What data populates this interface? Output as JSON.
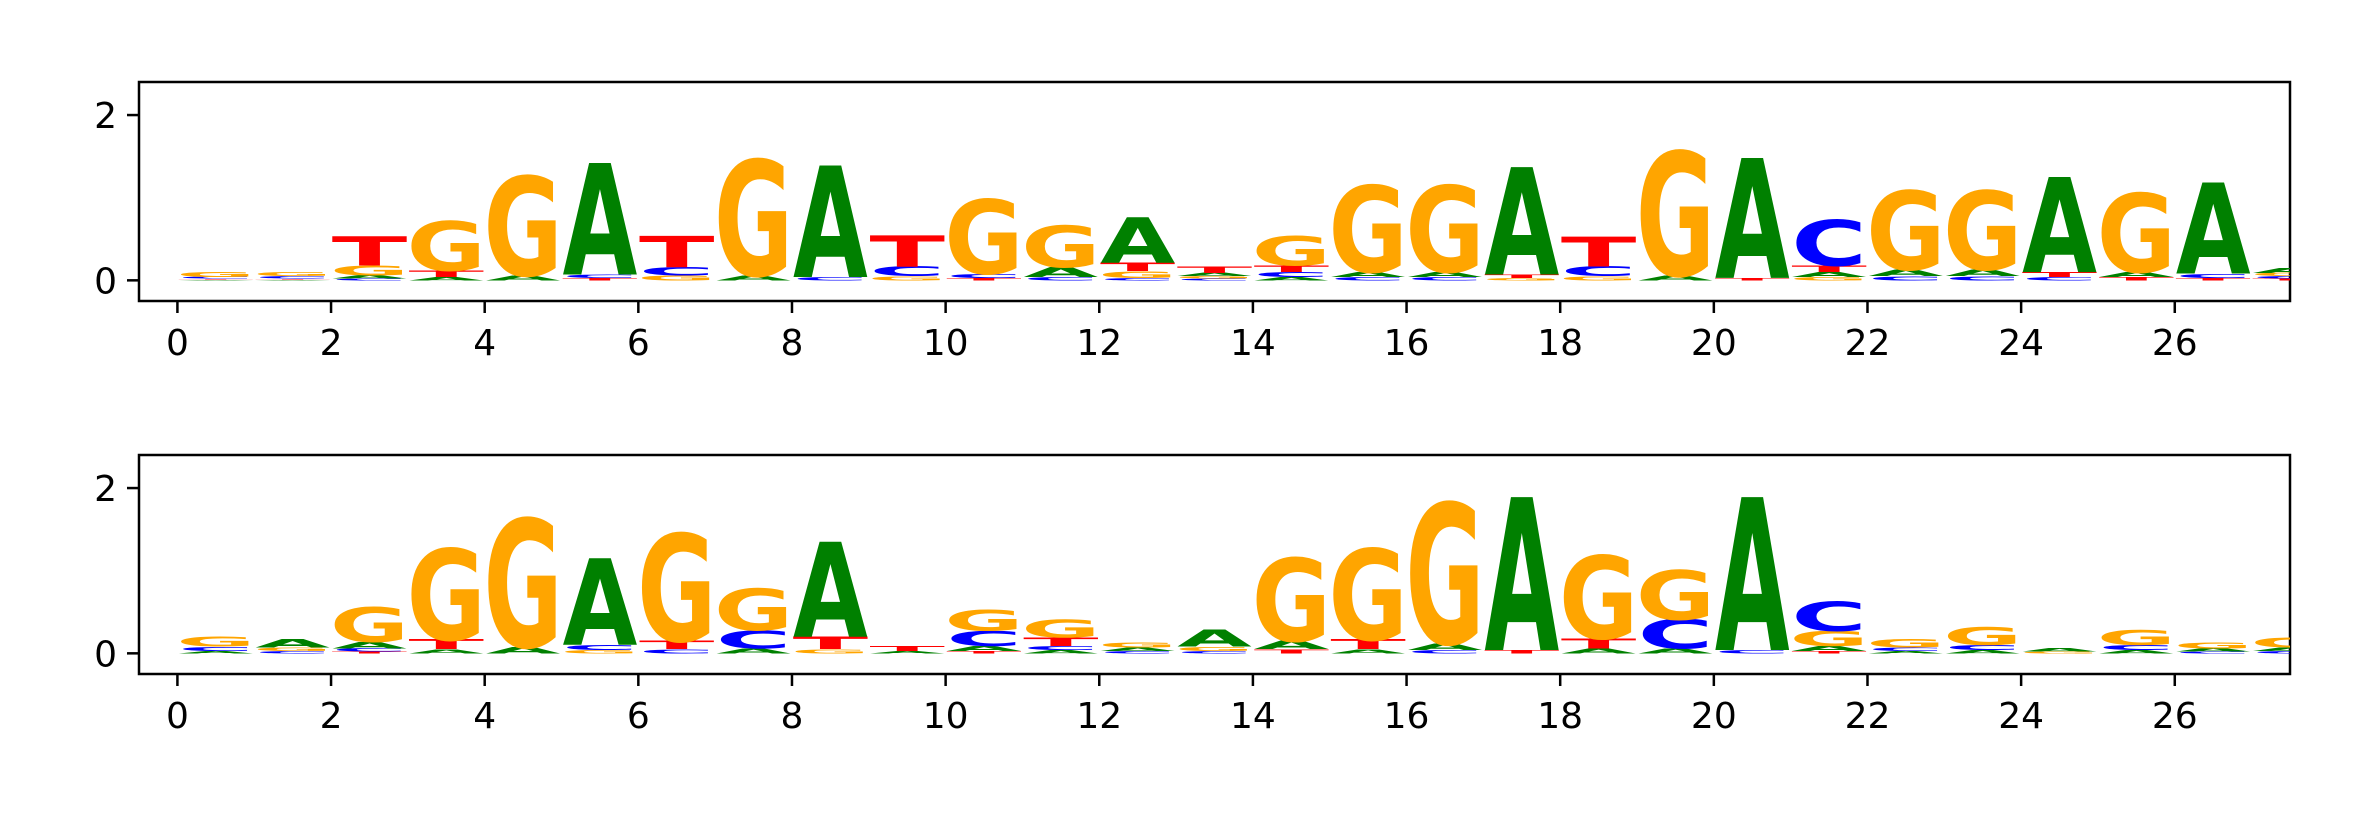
{
  "chart_data": [
    {
      "type": "sequence-logo",
      "title": "",
      "xlabel": "",
      "ylabel": "",
      "xlim": [
        -0.5,
        27.5
      ],
      "ylim": [
        -0.25,
        2.4
      ],
      "xticks": [
        "0",
        "2",
        "4",
        "6",
        "8",
        "10",
        "12",
        "14",
        "16",
        "18",
        "20",
        "22",
        "24",
        "26"
      ],
      "yticks": [
        "0",
        "2"
      ],
      "positions": [
        [
          {
            "letter": "G",
            "h": 0.06
          },
          {
            "letter": "C",
            "h": 0.02
          },
          {
            "letter": "A",
            "h": 0.01
          },
          {
            "letter": "T",
            "h": 0.01
          }
        ],
        [
          {
            "letter": "G",
            "h": 0.05
          },
          {
            "letter": "C",
            "h": 0.03
          },
          {
            "letter": "A",
            "h": 0.01
          },
          {
            "letter": "T",
            "h": 0.01
          }
        ],
        [
          {
            "letter": "T",
            "h": 0.35
          },
          {
            "letter": "G",
            "h": 0.12
          },
          {
            "letter": "A",
            "h": 0.04
          },
          {
            "letter": "C",
            "h": 0.02
          }
        ],
        [
          {
            "letter": "G",
            "h": 0.6
          },
          {
            "letter": "T",
            "h": 0.08
          },
          {
            "letter": "A",
            "h": 0.04
          }
        ],
        [
          {
            "letter": "G",
            "h": 1.2
          },
          {
            "letter": "A",
            "h": 0.06
          }
        ],
        [
          {
            "letter": "A",
            "h": 1.35
          },
          {
            "letter": "C",
            "h": 0.04
          },
          {
            "letter": "T",
            "h": 0.03
          }
        ],
        [
          {
            "letter": "T",
            "h": 0.38
          },
          {
            "letter": "C",
            "h": 0.1
          },
          {
            "letter": "G",
            "h": 0.06
          }
        ],
        [
          {
            "letter": "G",
            "h": 1.4
          },
          {
            "letter": "A",
            "h": 0.06
          }
        ],
        [
          {
            "letter": "A",
            "h": 1.35
          },
          {
            "letter": "C",
            "h": 0.04
          }
        ],
        [
          {
            "letter": "T",
            "h": 0.38
          },
          {
            "letter": "C",
            "h": 0.12
          },
          {
            "letter": "G",
            "h": 0.05
          }
        ],
        [
          {
            "letter": "G",
            "h": 0.9
          },
          {
            "letter": "C",
            "h": 0.05
          },
          {
            "letter": "T",
            "h": 0.03
          }
        ],
        [
          {
            "letter": "G",
            "h": 0.5
          },
          {
            "letter": "A",
            "h": 0.12
          },
          {
            "letter": "C",
            "h": 0.04
          }
        ],
        [
          {
            "letter": "A",
            "h": 0.55
          },
          {
            "letter": "T",
            "h": 0.1
          },
          {
            "letter": "G",
            "h": 0.08
          },
          {
            "letter": "C",
            "h": 0.03
          }
        ],
        [
          {
            "letter": "T",
            "h": 0.08
          },
          {
            "letter": "A",
            "h": 0.04
          },
          {
            "letter": "G",
            "h": 0.03
          },
          {
            "letter": "C",
            "h": 0.02
          }
        ],
        [
          {
            "letter": "G",
            "h": 0.35
          },
          {
            "letter": "T",
            "h": 0.08
          },
          {
            "letter": "C",
            "h": 0.06
          },
          {
            "letter": "A",
            "h": 0.04
          }
        ],
        [
          {
            "letter": "G",
            "h": 1.05
          },
          {
            "letter": "A",
            "h": 0.06
          },
          {
            "letter": "C",
            "h": 0.04
          }
        ],
        [
          {
            "letter": "G",
            "h": 1.05
          },
          {
            "letter": "A",
            "h": 0.06
          },
          {
            "letter": "C",
            "h": 0.04
          }
        ],
        [
          {
            "letter": "A",
            "h": 1.3
          },
          {
            "letter": "T",
            "h": 0.04
          },
          {
            "letter": "G",
            "h": 0.03
          }
        ],
        [
          {
            "letter": "T",
            "h": 0.36
          },
          {
            "letter": "C",
            "h": 0.12
          },
          {
            "letter": "G",
            "h": 0.05
          }
        ],
        [
          {
            "letter": "G",
            "h": 1.5
          },
          {
            "letter": "A",
            "h": 0.06
          }
        ],
        [
          {
            "letter": "A",
            "h": 1.45
          },
          {
            "letter": "T",
            "h": 0.03
          }
        ],
        [
          {
            "letter": "C",
            "h": 0.55
          },
          {
            "letter": "T",
            "h": 0.08
          },
          {
            "letter": "A",
            "h": 0.06
          },
          {
            "letter": "G",
            "h": 0.04
          }
        ],
        [
          {
            "letter": "G",
            "h": 0.95
          },
          {
            "letter": "A",
            "h": 0.08
          },
          {
            "letter": "C",
            "h": 0.05
          }
        ],
        [
          {
            "letter": "G",
            "h": 0.95
          },
          {
            "letter": "A",
            "h": 0.08
          },
          {
            "letter": "C",
            "h": 0.05
          }
        ],
        [
          {
            "letter": "A",
            "h": 1.15
          },
          {
            "letter": "T",
            "h": 0.06
          },
          {
            "letter": "C",
            "h": 0.04
          }
        ],
        [
          {
            "letter": "G",
            "h": 0.95
          },
          {
            "letter": "A",
            "h": 0.06
          },
          {
            "letter": "T",
            "h": 0.04
          }
        ],
        [
          {
            "letter": "A",
            "h": 1.1
          },
          {
            "letter": "C",
            "h": 0.05
          },
          {
            "letter": "T",
            "h": 0.03
          }
        ],
        [
          {
            "letter": "A",
            "h": 0.06
          },
          {
            "letter": "G",
            "h": 0.04
          },
          {
            "letter": "C",
            "h": 0.03
          },
          {
            "letter": "T",
            "h": 0.02
          }
        ]
      ]
    },
    {
      "type": "sequence-logo",
      "title": "",
      "xlabel": "",
      "ylabel": "",
      "xlim": [
        -0.5,
        27.5
      ],
      "ylim": [
        -0.25,
        2.4
      ],
      "xticks": [
        "0",
        "2",
        "4",
        "6",
        "8",
        "10",
        "12",
        "14",
        "16",
        "18",
        "20",
        "22",
        "24",
        "26"
      ],
      "yticks": [
        "0",
        "2"
      ],
      "positions": [
        [
          {
            "letter": "G",
            "h": 0.12
          },
          {
            "letter": "C",
            "h": 0.05
          },
          {
            "letter": "A",
            "h": 0.03
          }
        ],
        [
          {
            "letter": "A",
            "h": 0.1
          },
          {
            "letter": "G",
            "h": 0.04
          },
          {
            "letter": "C",
            "h": 0.03
          }
        ],
        [
          {
            "letter": "G",
            "h": 0.42
          },
          {
            "letter": "A",
            "h": 0.08
          },
          {
            "letter": "C",
            "h": 0.04
          },
          {
            "letter": "T",
            "h": 0.02
          }
        ],
        [
          {
            "letter": "G",
            "h": 1.1
          },
          {
            "letter": "T",
            "h": 0.12
          },
          {
            "letter": "A",
            "h": 0.05
          }
        ],
        [
          {
            "letter": "G",
            "h": 1.55
          },
          {
            "letter": "A",
            "h": 0.08
          }
        ],
        [
          {
            "letter": "A",
            "h": 1.05
          },
          {
            "letter": "C",
            "h": 0.06
          },
          {
            "letter": "G",
            "h": 0.04
          }
        ],
        [
          {
            "letter": "G",
            "h": 1.3
          },
          {
            "letter": "T",
            "h": 0.1
          },
          {
            "letter": "C",
            "h": 0.05
          }
        ],
        [
          {
            "letter": "G",
            "h": 0.5
          },
          {
            "letter": "C",
            "h": 0.22
          },
          {
            "letter": "A",
            "h": 0.06
          }
        ],
        [
          {
            "letter": "A",
            "h": 1.15
          },
          {
            "letter": "T",
            "h": 0.15
          },
          {
            "letter": "G",
            "h": 0.05
          }
        ],
        [
          {
            "letter": "T",
            "h": 0.06
          },
          {
            "letter": "A",
            "h": 0.03
          }
        ],
        [
          {
            "letter": "G",
            "h": 0.25
          },
          {
            "letter": "C",
            "h": 0.18
          },
          {
            "letter": "A",
            "h": 0.06
          },
          {
            "letter": "T",
            "h": 0.03
          }
        ],
        [
          {
            "letter": "G",
            "h": 0.22
          },
          {
            "letter": "T",
            "h": 0.1
          },
          {
            "letter": "C",
            "h": 0.05
          },
          {
            "letter": "A",
            "h": 0.04
          }
        ],
        [
          {
            "letter": "G",
            "h": 0.06
          },
          {
            "letter": "A",
            "h": 0.04
          },
          {
            "letter": "C",
            "h": 0.03
          }
        ],
        [
          {
            "letter": "A",
            "h": 0.2
          },
          {
            "letter": "G",
            "h": 0.05
          },
          {
            "letter": "C",
            "h": 0.03
          }
        ],
        [
          {
            "letter": "G",
            "h": 1.0
          },
          {
            "letter": "A",
            "h": 0.1
          },
          {
            "letter": "T",
            "h": 0.05
          }
        ],
        [
          {
            "letter": "G",
            "h": 1.1
          },
          {
            "letter": "T",
            "h": 0.12
          },
          {
            "letter": "A",
            "h": 0.05
          }
        ],
        [
          {
            "letter": "G",
            "h": 1.7
          },
          {
            "letter": "A",
            "h": 0.08
          },
          {
            "letter": "C",
            "h": 0.04
          }
        ],
        [
          {
            "letter": "A",
            "h": 1.85
          },
          {
            "letter": "T",
            "h": 0.04
          }
        ],
        [
          {
            "letter": "G",
            "h": 1.0
          },
          {
            "letter": "T",
            "h": 0.12
          },
          {
            "letter": "A",
            "h": 0.06
          }
        ],
        [
          {
            "letter": "G",
            "h": 0.6
          },
          {
            "letter": "C",
            "h": 0.35
          },
          {
            "letter": "A",
            "h": 0.06
          }
        ],
        [
          {
            "letter": "A",
            "h": 1.85
          },
          {
            "letter": "C",
            "h": 0.04
          }
        ],
        [
          {
            "letter": "C",
            "h": 0.35
          },
          {
            "letter": "G",
            "h": 0.18
          },
          {
            "letter": "A",
            "h": 0.06
          },
          {
            "letter": "T",
            "h": 0.03
          }
        ],
        [
          {
            "letter": "G",
            "h": 0.1
          },
          {
            "letter": "C",
            "h": 0.04
          },
          {
            "letter": "A",
            "h": 0.03
          }
        ],
        [
          {
            "letter": "G",
            "h": 0.22
          },
          {
            "letter": "C",
            "h": 0.06
          },
          {
            "letter": "A",
            "h": 0.04
          }
        ],
        [
          {
            "letter": "A",
            "h": 0.04
          },
          {
            "letter": "G",
            "h": 0.02
          }
        ],
        [
          {
            "letter": "G",
            "h": 0.18
          },
          {
            "letter": "C",
            "h": 0.06
          },
          {
            "letter": "A",
            "h": 0.04
          }
        ],
        [
          {
            "letter": "G",
            "h": 0.07
          },
          {
            "letter": "A",
            "h": 0.04
          },
          {
            "letter": "C",
            "h": 0.02
          }
        ],
        [
          {
            "letter": "G",
            "h": 0.12
          },
          {
            "letter": "A",
            "h": 0.04
          },
          {
            "letter": "C",
            "h": 0.03
          }
        ]
      ]
    }
  ],
  "colors": {
    "A": "#008000",
    "C": "#0000ff",
    "G": "#ffa500",
    "T": "#ff0000",
    "axis": "#000000"
  }
}
